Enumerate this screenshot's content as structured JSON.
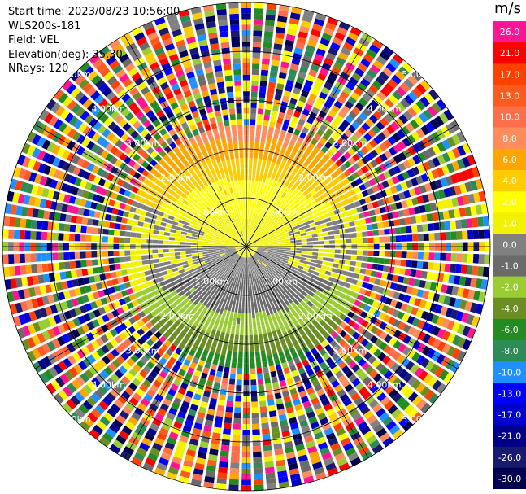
{
  "header": {
    "start_time": "Start time: 2023/08/23 10:56:00",
    "instrument": "WLS200s-181",
    "field": "Field: VEL",
    "elevation": "Elevation(deg): 35.30",
    "nrays": "NRays: 120"
  },
  "colorbar": {
    "unit": "m/s",
    "ticks": [
      "26.0",
      "21.0",
      "17.0",
      "13.0",
      "10.0",
      "8.0",
      "6.0",
      "4.0",
      "2.0",
      "1.0",
      "0.0",
      "-1.0",
      "-2.0",
      "-4.0",
      "-6.0",
      "-8.0",
      "-10.0",
      "-13.0",
      "-17.0",
      "-21.0",
      "-26.0",
      "-30.0"
    ],
    "colors": [
      "#ff1493",
      "#ff0000",
      "#ff4000",
      "#ff5a1e",
      "#ff6e4a",
      "#ff8c5a",
      "#ffa500",
      "#ffcc00",
      "#ffff00",
      "#f2f200",
      "#808080",
      "#6b6b6b",
      "#9acd32",
      "#6b8e23",
      "#228b22",
      "#2e8b57",
      "#1e90ff",
      "#0000ff",
      "#0000cd",
      "#00008b",
      "#191970",
      "#000050"
    ]
  },
  "chart_data": {
    "type": "ppi",
    "field": "VEL",
    "units": "m/s",
    "nrays": 120,
    "elevation_deg": 35.3,
    "range_rings_km": [
      1.0,
      2.0,
      3.0,
      4.0,
      5.0
    ],
    "range_ring_labels": [
      "1.00km",
      "2.00km",
      "3.00km",
      "4.00km",
      "5.00km"
    ],
    "vmin": -30.0,
    "vmax": 30.0,
    "max_valid_range_km": 2.45,
    "profile": [
      {
        "range_km": 0.2,
        "vel": 0.0
      },
      {
        "range_km": 0.6,
        "vel": 1.0
      },
      {
        "range_km": 1.0,
        "vel": 1.5
      },
      {
        "range_km": 1.4,
        "vel": 2.0
      },
      {
        "range_km": 1.8,
        "vel": 4.0
      },
      {
        "range_km": 2.2,
        "vel": 6.0
      },
      {
        "range_km": 2.4,
        "vel": 7.0
      }
    ]
  }
}
